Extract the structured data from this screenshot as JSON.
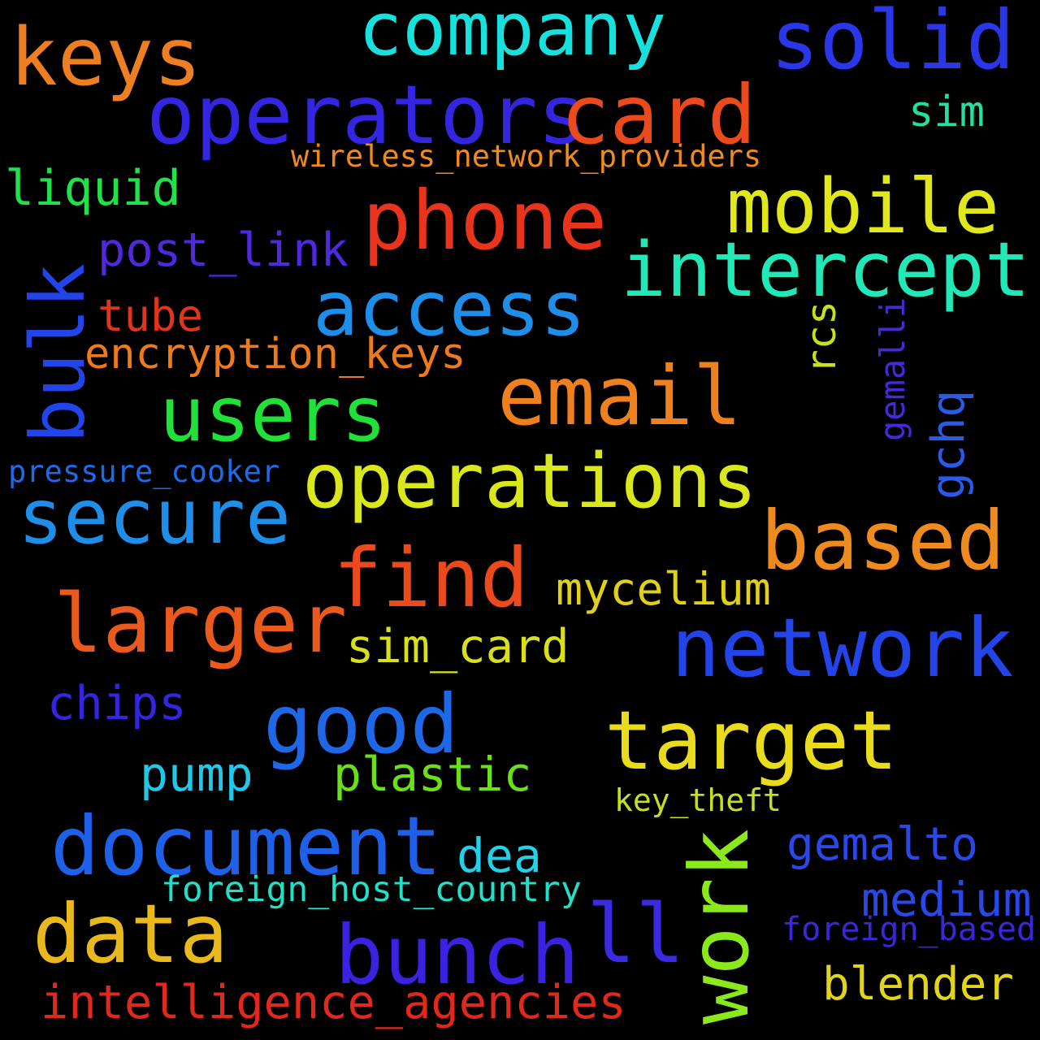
{
  "words": [
    {
      "text": "company",
      "color": "#18e0dc"
    },
    {
      "text": "solid",
      "color": "#2a37e8"
    },
    {
      "text": "keys",
      "color": "#ee7e22"
    },
    {
      "text": "operators",
      "color": "#3426e0"
    },
    {
      "text": "card",
      "color": "#ea4a1c"
    },
    {
      "text": "sim",
      "color": "#22e0a0"
    },
    {
      "text": "wireless_network_providers",
      "color": "#ee8a1e"
    },
    {
      "text": "liquid",
      "color": "#22e04a"
    },
    {
      "text": "phone",
      "color": "#e8341c"
    },
    {
      "text": "mobile",
      "color": "#e0e81c"
    },
    {
      "text": "intercept",
      "color": "#22e8b8"
    },
    {
      "text": "post_link",
      "color": "#5028e0"
    },
    {
      "text": "access",
      "color": "#1e8ee8"
    },
    {
      "text": "bulk",
      "color": "#2244e8"
    },
    {
      "text": "tube",
      "color": "#e0341c"
    },
    {
      "text": "rcs",
      "color": "#c8e01c"
    },
    {
      "text": "gemalli",
      "color": "#4a28d8"
    },
    {
      "text": "encryption_keys",
      "color": "#ee7a1e"
    },
    {
      "text": "email",
      "color": "#ee801e"
    },
    {
      "text": "users",
      "color": "#22e03a"
    },
    {
      "text": "gchq",
      "color": "#2a5ae8"
    },
    {
      "text": "pressure_cooker",
      "color": "#1e6ae8"
    },
    {
      "text": "operations",
      "color": "#d8e81c"
    },
    {
      "text": "secure",
      "color": "#1e8ee8"
    },
    {
      "text": "based",
      "color": "#ee8a1e"
    },
    {
      "text": "find",
      "color": "#ea4a1c"
    },
    {
      "text": "mycelium",
      "color": "#e0d01c"
    },
    {
      "text": "larger",
      "color": "#ea5a1c"
    },
    {
      "text": "network",
      "color": "#2244e8"
    },
    {
      "text": "sim_card",
      "color": "#d8e01c"
    },
    {
      "text": "chips",
      "color": "#3426e0"
    },
    {
      "text": "good",
      "color": "#1e68e8"
    },
    {
      "text": "target",
      "color": "#e8dc1c"
    },
    {
      "text": "pump",
      "color": "#22c8e8"
    },
    {
      "text": "plastic",
      "color": "#6ae01c"
    },
    {
      "text": "key_theft",
      "color": "#c8e01c"
    },
    {
      "text": "document",
      "color": "#1e60e8"
    },
    {
      "text": "dea",
      "color": "#22d0e8"
    },
    {
      "text": "gemalto",
      "color": "#2a48e8"
    },
    {
      "text": "work",
      "color": "#8ae81c"
    },
    {
      "text": "foreign_host_country",
      "color": "#22e0c8"
    },
    {
      "text": "medium",
      "color": "#2a48e8"
    },
    {
      "text": "data",
      "color": "#e8b81c"
    },
    {
      "text": "ll",
      "color": "#3a2ae0"
    },
    {
      "text": "bunch",
      "color": "#3a22e0"
    },
    {
      "text": "foreign_based",
      "color": "#3a28d8"
    },
    {
      "text": "blender",
      "color": "#e0d41c"
    },
    {
      "text": "intelligence_agencies",
      "color": "#e0281c"
    }
  ]
}
